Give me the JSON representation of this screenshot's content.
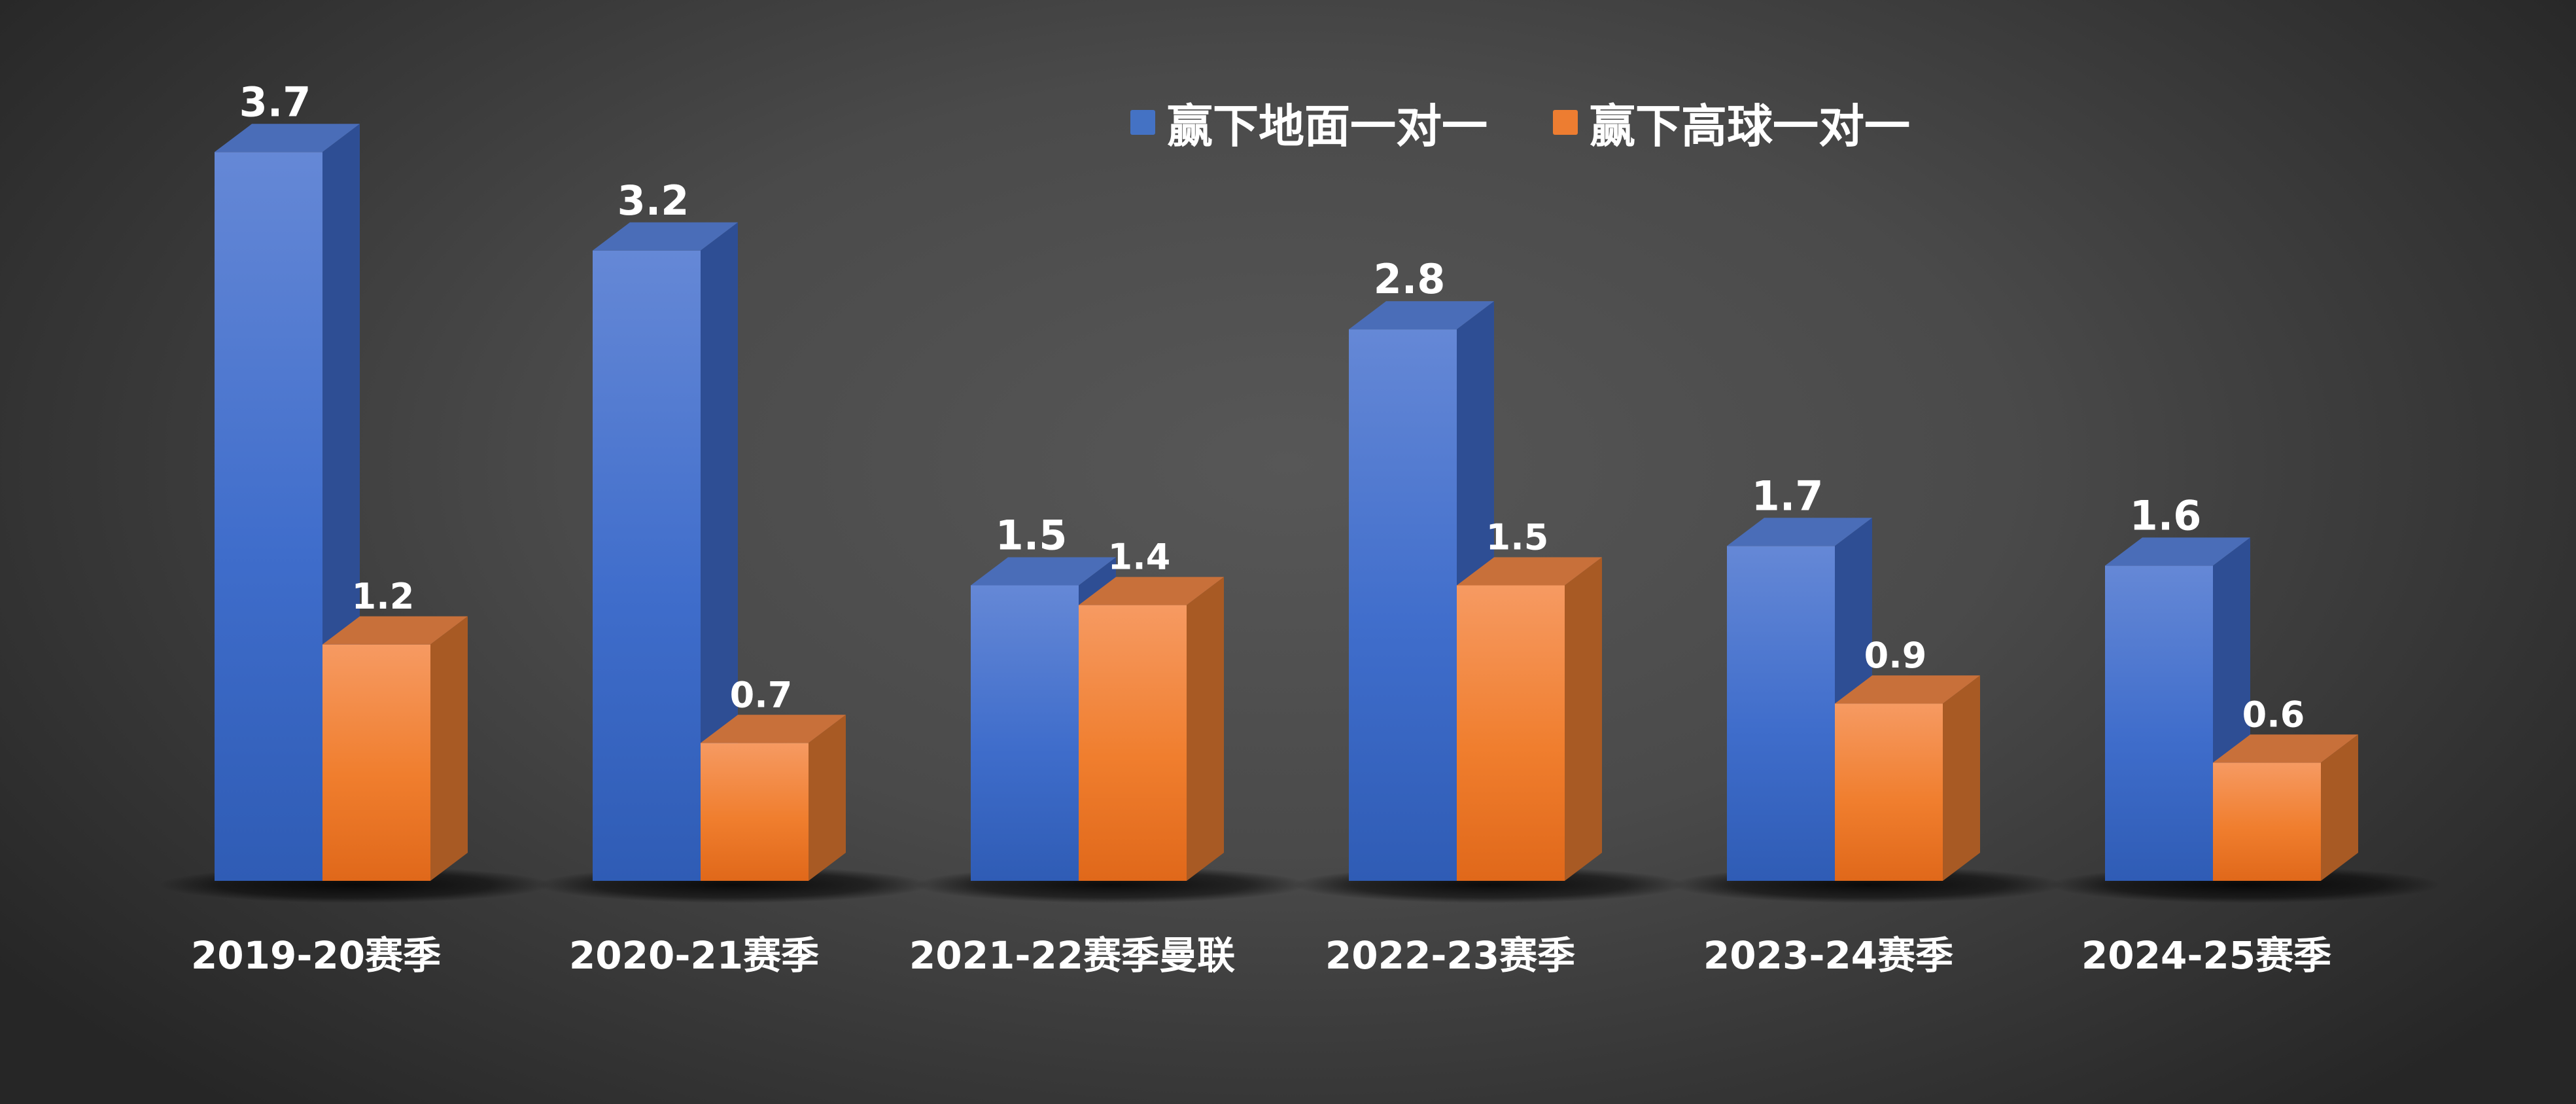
{
  "legend": {
    "series": [
      {
        "label": "赢下地面一对一",
        "color": "#4472C4"
      },
      {
        "label": "赢下高球一对一",
        "color": "#ED7D31"
      }
    ]
  },
  "chart_data": {
    "type": "bar",
    "title": "",
    "xlabel": "",
    "ylabel": "",
    "ylim": [
      0,
      4
    ],
    "grid": false,
    "legend_position": "top-right",
    "categories": [
      "2019-20赛季",
      "2020-21赛季",
      "2021-22赛季曼联",
      "2022-23赛季",
      "2023-24赛季",
      "2024-25赛季"
    ],
    "series": [
      {
        "name": "赢下地面一对一",
        "color": "#4472C4",
        "values": [
          3.7,
          3.2,
          1.5,
          2.8,
          1.7,
          1.6
        ]
      },
      {
        "name": "赢下高球一对一",
        "color": "#ED7D31",
        "values": [
          1.2,
          0.7,
          1.4,
          1.5,
          0.9,
          0.6
        ]
      }
    ]
  }
}
